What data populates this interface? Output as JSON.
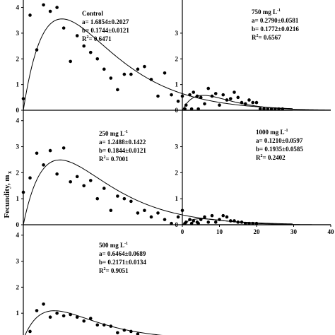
{
  "figure": {
    "ylabel": "Fecundity, m",
    "ylabel_sub": "x"
  },
  "chart_data": [
    {
      "type": "scatter",
      "panel": "left-top",
      "annotation": [
        "Control",
        "a= 1.6854±0.2027",
        "b= 0.1744±0.0121",
        "R²= 0.6471"
      ],
      "xlim": [
        0,
        40
      ],
      "ylim": [
        0,
        4.4
      ],
      "y_ticks": [
        0,
        1,
        2,
        3,
        4
      ],
      "x_ticks": [],
      "points": [
        [
          0,
          0.45
        ],
        [
          1,
          3.7
        ],
        [
          2,
          2.35
        ],
        [
          3,
          4.1
        ],
        [
          4,
          3.85
        ],
        [
          5,
          4.0
        ],
        [
          6,
          3.2
        ],
        [
          7,
          1.9
        ],
        [
          8,
          2.9
        ],
        [
          9,
          2.5
        ],
        [
          10,
          2.25
        ],
        [
          11,
          2.0
        ],
        [
          12,
          1.6
        ],
        [
          13,
          1.25
        ],
        [
          14,
          0.8
        ],
        [
          15,
          1.4
        ],
        [
          16,
          1.4
        ],
        [
          17,
          1.6
        ],
        [
          18,
          1.7
        ],
        [
          19,
          1.2
        ],
        [
          20,
          0.55
        ],
        [
          21,
          1.45
        ],
        [
          22,
          0.6
        ],
        [
          23,
          0.35
        ],
        [
          24,
          0.05
        ],
        [
          25,
          0.05
        ],
        [
          26,
          0.05
        ]
      ],
      "curve": {
        "a": 1.6854,
        "b": 0.1744
      }
    },
    {
      "type": "scatter",
      "panel": "right-top",
      "annotation": [
        "750 mg L⁻¹",
        "a= 0.2790±0.0581",
        "b= 0.1772±0.0216",
        "R²= 0.6567"
      ],
      "xlim": [
        0,
        40
      ],
      "ylim": [
        0,
        4.4
      ],
      "y_ticks": [
        0,
        1,
        2,
        3
      ],
      "x_ticks": [],
      "points": [
        [
          0,
          0.55
        ],
        [
          1,
          0.2
        ],
        [
          2,
          0.6
        ],
        [
          3,
          0.7
        ],
        [
          4,
          0.55
        ],
        [
          5,
          0.5
        ],
        [
          6,
          0.25
        ],
        [
          7,
          0.85
        ],
        [
          8,
          0.55
        ],
        [
          9,
          0.65
        ],
        [
          10,
          0.2
        ],
        [
          11,
          0.6
        ],
        [
          12,
          0.4
        ],
        [
          13,
          0.45
        ],
        [
          14,
          0.7
        ],
        [
          15,
          0.5
        ],
        [
          16,
          0.3
        ],
        [
          17,
          0.25
        ],
        [
          18,
          0.4
        ],
        [
          19,
          0.3
        ],
        [
          20,
          0.3
        ],
        [
          21,
          0.05
        ],
        [
          22,
          0.05
        ],
        [
          23,
          0.05
        ],
        [
          24,
          0.05
        ],
        [
          25,
          0.05
        ],
        [
          26,
          0.05
        ],
        [
          27,
          0.05
        ]
      ],
      "curve": {
        "a": 0.279,
        "b": 0.1772
      }
    },
    {
      "type": "scatter",
      "panel": "left-middle",
      "annotation": [
        "250 mg L⁻¹",
        "a= 1.2488±0.1422",
        "b= 0.1844±0.0121",
        "R²= 0.7001"
      ],
      "xlim": [
        0,
        40
      ],
      "ylim": [
        0,
        4.4
      ],
      "y_ticks": [
        0,
        1,
        2,
        3,
        4
      ],
      "x_ticks": [],
      "points": [
        [
          0,
          1.25
        ],
        [
          1,
          1.8
        ],
        [
          2,
          2.75
        ],
        [
          3,
          2.3
        ],
        [
          4,
          2.85
        ],
        [
          5,
          1.95
        ],
        [
          6,
          2.95
        ],
        [
          7,
          1.65
        ],
        [
          8,
          1.85
        ],
        [
          9,
          1.5
        ],
        [
          10,
          1.7
        ],
        [
          11,
          1.0
        ],
        [
          12,
          1.4
        ],
        [
          13,
          0.55
        ],
        [
          14,
          1.1
        ],
        [
          15,
          1.0
        ],
        [
          16,
          0.9
        ],
        [
          17,
          0.45
        ],
        [
          18,
          0.55
        ],
        [
          19,
          0.3
        ],
        [
          20,
          0.45
        ],
        [
          21,
          0.2
        ],
        [
          22,
          0.05
        ],
        [
          23,
          0.3
        ],
        [
          24,
          0.05
        ],
        [
          25,
          0.05
        ],
        [
          26,
          0.05
        ]
      ],
      "curve": {
        "a": 1.2488,
        "b": 0.1844
      }
    },
    {
      "type": "scatter",
      "panel": "right-middle",
      "annotation": [
        "1000 mg L⁻¹",
        "a= 0.1210±0.0597",
        "b= 0.1935±0.0585",
        "R²= 0.2402"
      ],
      "xlim": [
        0,
        40
      ],
      "ylim": [
        0,
        4.4
      ],
      "y_ticks": [
        0,
        1,
        2,
        3
      ],
      "x_ticks": [
        0,
        10,
        20,
        30,
        40
      ],
      "x_tick_labels": [
        "0",
        "10",
        "20",
        "30",
        "40"
      ],
      "points": [
        [
          0,
          0.55
        ],
        [
          1,
          0.1
        ],
        [
          2,
          0.2
        ],
        [
          3,
          0.15
        ],
        [
          4,
          0.1
        ],
        [
          5,
          0.2
        ],
        [
          6,
          0.3
        ],
        [
          7,
          0.1
        ],
        [
          8,
          0.35
        ],
        [
          9,
          0.1
        ],
        [
          10,
          0.2
        ],
        [
          11,
          0.35
        ],
        [
          12,
          0.3
        ],
        [
          13,
          0.15
        ],
        [
          14,
          0.15
        ],
        [
          15,
          0.1
        ],
        [
          16,
          0.1
        ],
        [
          17,
          0.05
        ],
        [
          18,
          0.05
        ],
        [
          19,
          0.05
        ],
        [
          20,
          0.05
        ]
      ],
      "curve": {
        "a": 0.121,
        "b": 0.1935
      }
    },
    {
      "type": "scatter",
      "panel": "left-bottom",
      "annotation": [
        "500 mg L⁻¹",
        "a= 0.6464±0.0689",
        "b= 0.2171±0.0134",
        "R²= 0.9051"
      ],
      "xlim": [
        0,
        40
      ],
      "ylim": [
        0,
        4.4
      ],
      "y_ticks": [
        0,
        1,
        2,
        3,
        4
      ],
      "x_ticks": [],
      "points": [
        [
          0,
          0.1
        ],
        [
          1,
          0.3
        ],
        [
          2,
          1.1
        ],
        [
          3,
          1.35
        ],
        [
          4,
          0.85
        ],
        [
          5,
          1.0
        ],
        [
          6,
          0.9
        ],
        [
          7,
          0.95
        ],
        [
          8,
          0.85
        ],
        [
          9,
          0.7
        ],
        [
          10,
          0.8
        ],
        [
          11,
          0.55
        ],
        [
          12,
          0.55
        ],
        [
          13,
          0.5
        ],
        [
          14,
          0.25
        ],
        [
          15,
          0.35
        ],
        [
          16,
          0.3
        ],
        [
          17,
          0.2
        ],
        [
          18,
          0.05
        ]
      ],
      "curve": {
        "a": 0.6464,
        "b": 0.2171
      }
    }
  ]
}
